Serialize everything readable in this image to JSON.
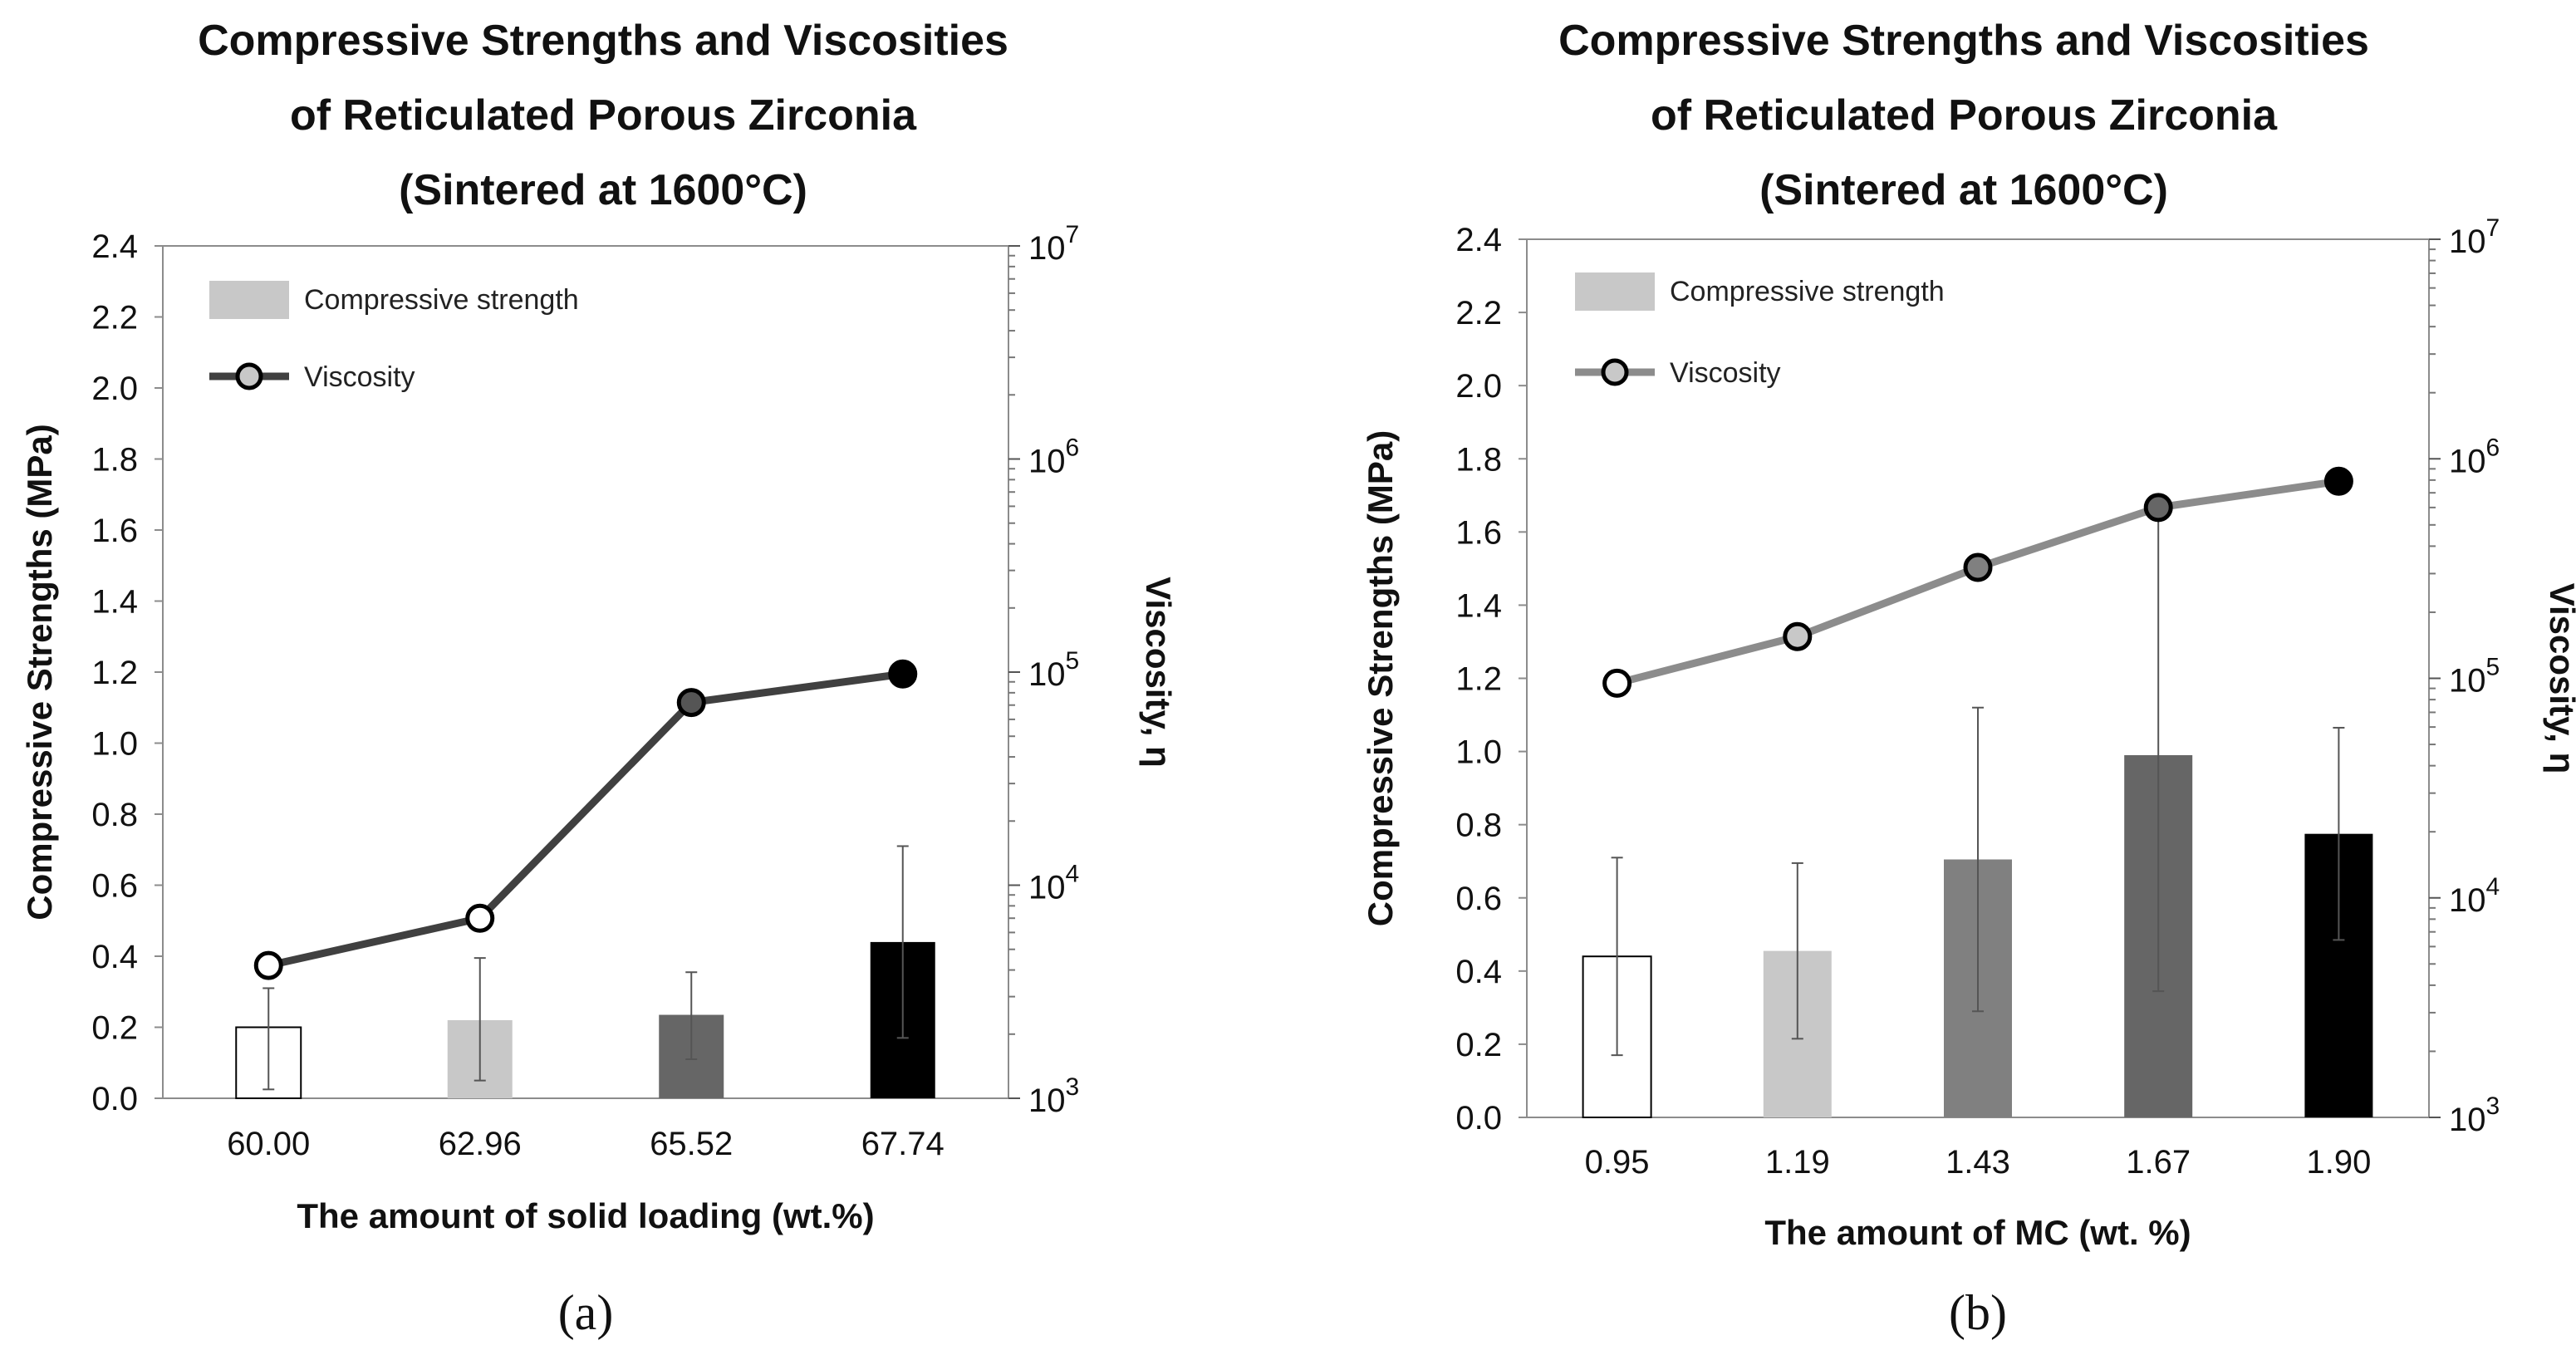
{
  "chart_data": [
    {
      "id": "a",
      "type": "bar+line",
      "title_lines": [
        "Compressive Strengths and Viscosities",
        "of Reticulated Porous Zirconia",
        "(Sintered at 1600°C)"
      ],
      "xlabel": "The amount of solid loading (wt.%)",
      "ylabel": "Compressive Strengths (MPa)",
      "y2label": "Viscosity, η",
      "caption": "(a)",
      "categories": [
        "60.00",
        "62.96",
        "65.52",
        "67.74"
      ],
      "ylim": [
        0,
        2.4
      ],
      "yticks": [
        "0.0",
        "0.2",
        "0.4",
        "0.6",
        "0.8",
        "1.0",
        "1.2",
        "1.4",
        "1.6",
        "1.8",
        "2.0",
        "2.2",
        "2.4"
      ],
      "y2scale": "log",
      "y2lim_exponent": [
        3,
        7
      ],
      "y2ticks": [
        {
          "base": "10",
          "exp": "3"
        },
        {
          "base": "10",
          "exp": "4"
        },
        {
          "base": "10",
          "exp": "5"
        },
        {
          "base": "10",
          "exp": "6"
        },
        {
          "base": "10",
          "exp": "7"
        }
      ],
      "series": [
        {
          "name": "Compressive strength",
          "type": "bar",
          "values": [
            0.2,
            0.22,
            0.235,
            0.44
          ],
          "err_low": [
            0.025,
            0.05,
            0.11,
            0.17
          ],
          "err_high": [
            0.31,
            0.395,
            0.355,
            0.71
          ],
          "colors": [
            "#ffffff",
            "#c8c8c8",
            "#666666",
            "#000000"
          ]
        },
        {
          "name": "Viscosity",
          "type": "line",
          "axis": "y2",
          "values": [
            4200,
            7000,
            72000,
            98000
          ],
          "line_color": "#404040",
          "marker_colors": [
            "#ffffff",
            "#ffffff",
            "#555555",
            "#000000"
          ]
        }
      ],
      "legend": {
        "bar_label": "Compressive strength",
        "line_label": "Viscosity",
        "position": "top-left"
      }
    },
    {
      "id": "b",
      "type": "bar+line",
      "title_lines": [
        "Compressive Strengths and Viscosities",
        "of Reticulated Porous Zirconia",
        "(Sintered at 1600°C)"
      ],
      "xlabel": "The amount of MC (wt. %)",
      "ylabel": "Compressive Strengths (MPa)",
      "y2label": "Viscosity, η",
      "caption": "(b)",
      "categories": [
        "0.95",
        "1.19",
        "1.43",
        "1.67",
        "1.90"
      ],
      "ylim": [
        0,
        2.4
      ],
      "yticks": [
        "0.0",
        "0.2",
        "0.4",
        "0.6",
        "0.8",
        "1.0",
        "1.2",
        "1.4",
        "1.6",
        "1.8",
        "2.0",
        "2.2",
        "2.4"
      ],
      "y2scale": "log",
      "y2lim_exponent": [
        3,
        7
      ],
      "y2ticks": [
        {
          "base": "10",
          "exp": "3"
        },
        {
          "base": "10",
          "exp": "4"
        },
        {
          "base": "10",
          "exp": "5"
        },
        {
          "base": "10",
          "exp": "6"
        },
        {
          "base": "10",
          "exp": "7"
        }
      ],
      "series": [
        {
          "name": "Compressive strength",
          "type": "bar",
          "values": [
            0.44,
            0.455,
            0.705,
            0.99,
            0.775
          ],
          "err_low": [
            0.17,
            0.215,
            0.29,
            0.345,
            0.485
          ],
          "err_high": [
            0.71,
            0.695,
            1.12,
            1.66,
            1.065
          ],
          "colors": [
            "#ffffff",
            "#c8c8c8",
            "#808080",
            "#666666",
            "#000000"
          ]
        },
        {
          "name": "Viscosity",
          "type": "line",
          "axis": "y2",
          "values": [
            95000,
            155000,
            320000,
            600000,
            790000
          ],
          "line_color": "#8c8c8c",
          "marker_colors": [
            "#ffffff",
            "#c8c8c8",
            "#808080",
            "#666666",
            "#000000"
          ]
        }
      ],
      "legend": {
        "bar_label": "Compressive strength",
        "line_label": "Viscosity",
        "position": "top-left"
      }
    }
  ]
}
